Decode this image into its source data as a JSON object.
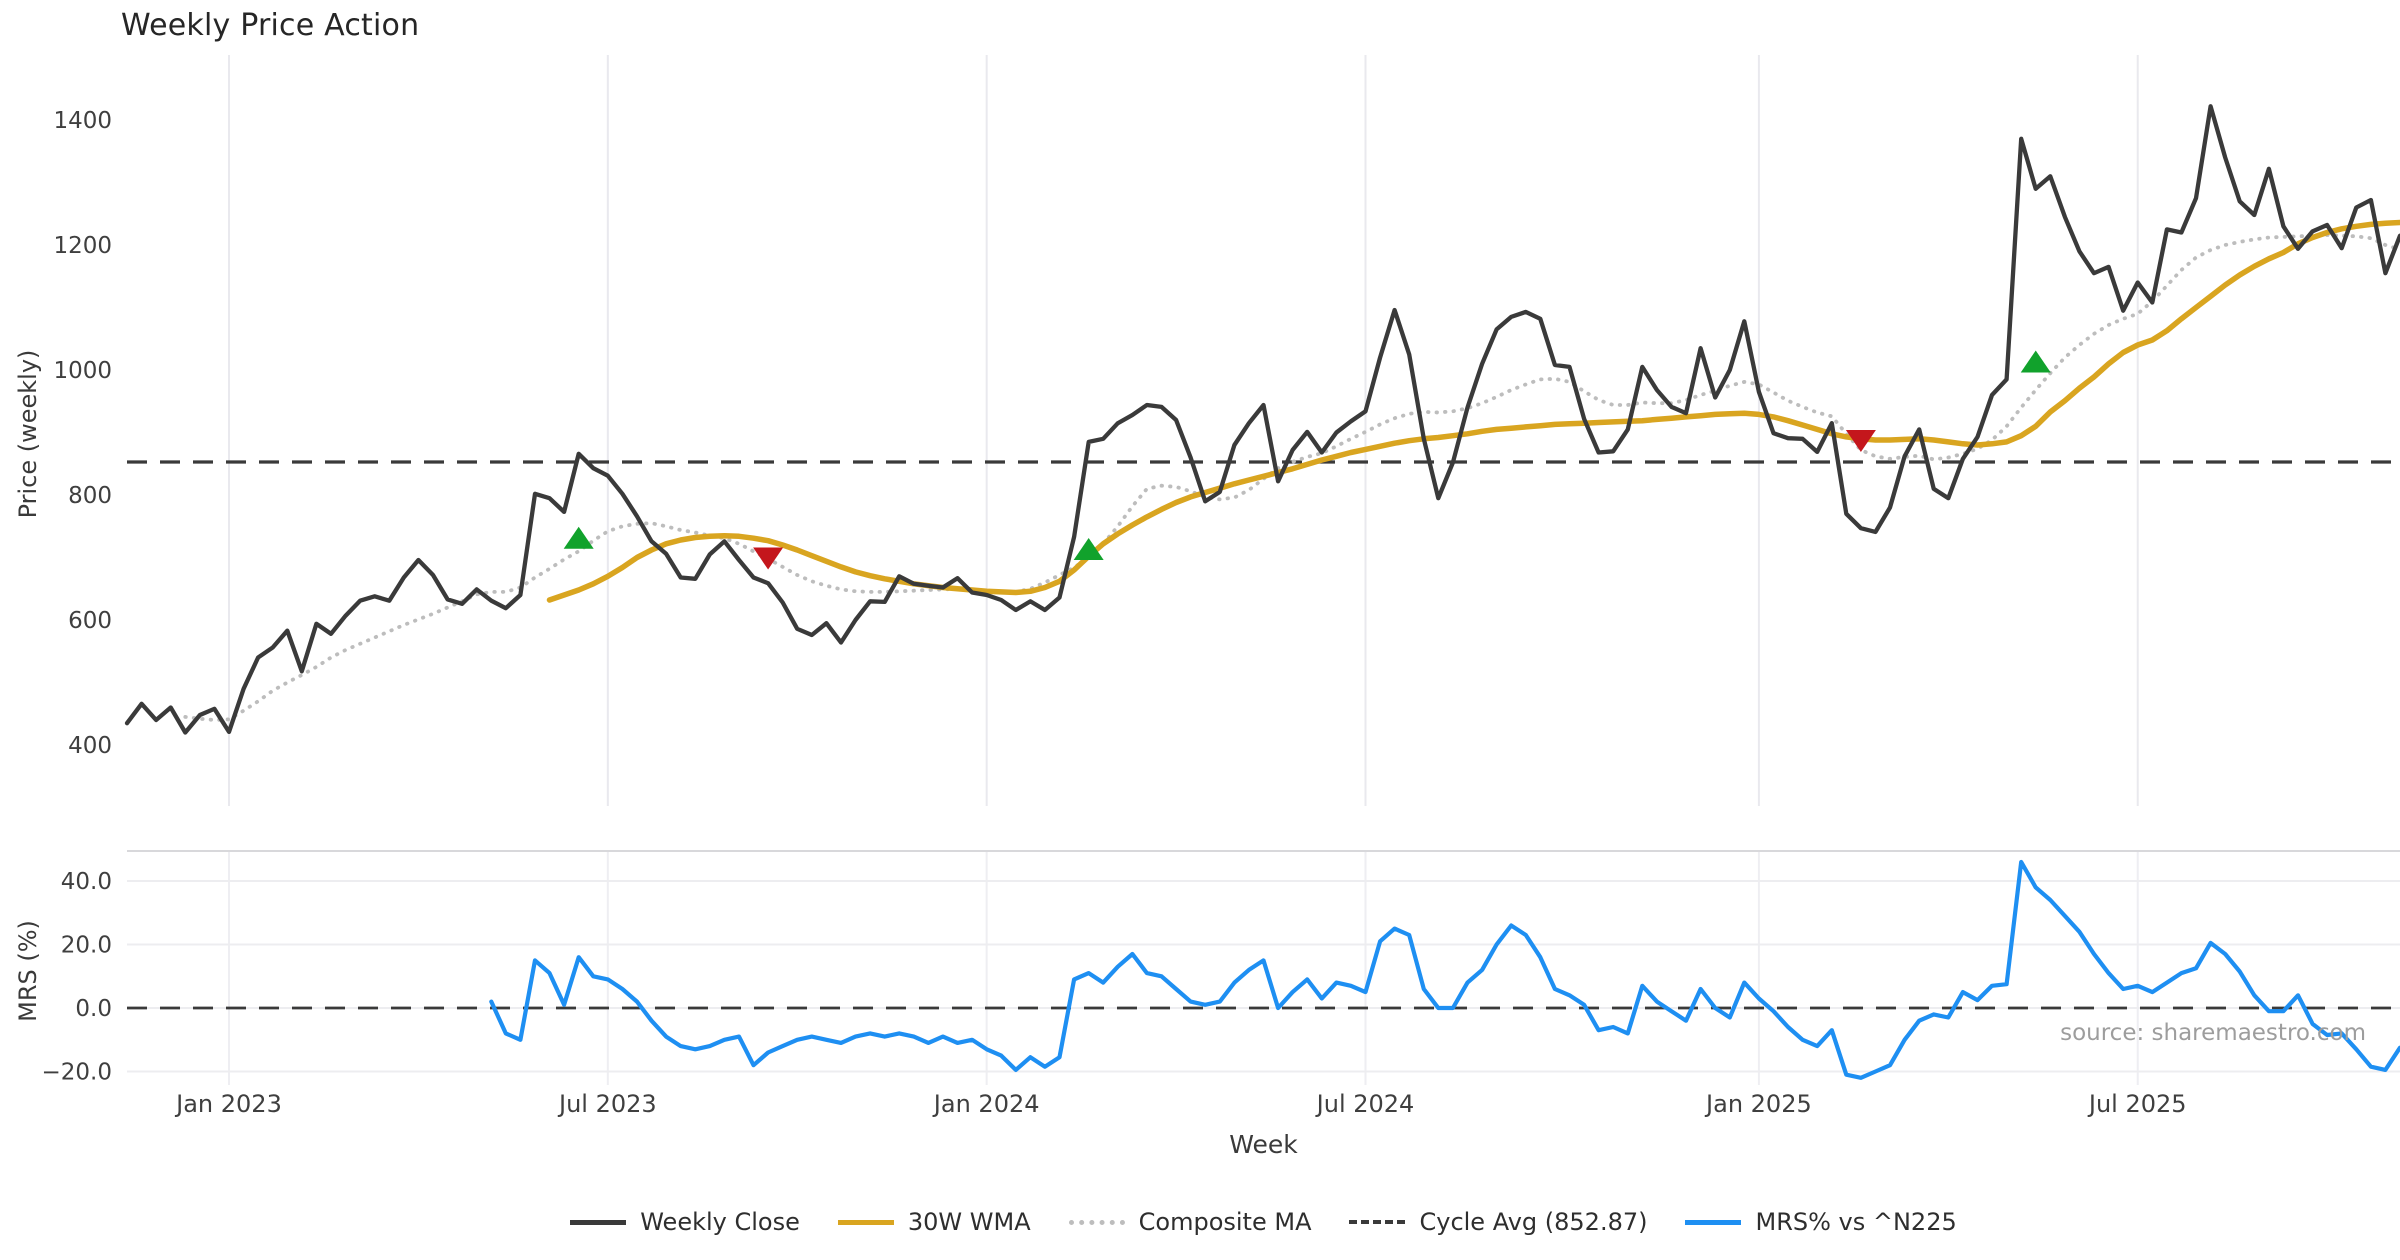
{
  "title": "Weekly Price Action",
  "source": "source: sharemaestro.com",
  "x_axis": {
    "label": "Week",
    "ticks": [
      {
        "label": "Jan 2023",
        "week": 7
      },
      {
        "label": "Jul 2023",
        "week": 33
      },
      {
        "label": "Jan 2024",
        "week": 59
      },
      {
        "label": "Jul 2024",
        "week": 85
      },
      {
        "label": "Jan 2025",
        "week": 112
      },
      {
        "label": "Jul 2025",
        "week": 138
      }
    ]
  },
  "price_panel": {
    "ylabel": "Price (weekly)",
    "ytick_labels": [
      "1400",
      "1200",
      "1000",
      "800",
      "600",
      "400"
    ],
    "yticks": [
      1400,
      1200,
      1000,
      800,
      600,
      400
    ]
  },
  "mrs_panel": {
    "ylabel": "MRS (%)",
    "ytick_labels": [
      "40.0",
      "20.0",
      "0.0",
      "−20.0"
    ],
    "yticks": [
      40,
      20,
      0,
      -20
    ]
  },
  "legend": {
    "items": [
      {
        "label": "Weekly Close",
        "color": "#3a3a3a",
        "style": "solid"
      },
      {
        "label": "30W WMA",
        "color": "#d9a520",
        "style": "solid"
      },
      {
        "label": "Composite MA",
        "color": "#bdbdbd",
        "style": "dotted"
      },
      {
        "label": "Cycle Avg (852.87)",
        "color": "#3a3a3a",
        "style": "dashed"
      },
      {
        "label": "MRS% vs ^N225",
        "color": "#1e8ff2",
        "style": "solid"
      }
    ]
  },
  "colors": {
    "weekly_close": "#3a3a3a",
    "wma": "#d9a520",
    "composite": "#bdbdbd",
    "cycle": "#3a3a3a",
    "mrs": "#1e8ff2",
    "buy": "#11a22c",
    "sell": "#c4161c",
    "grid": "#e9e9ee",
    "spine": "#d8d8db",
    "tick_text": "#3f3f3f"
  },
  "chart_data": [
    {
      "type": "line",
      "panel": "price",
      "title": "Weekly Price Action",
      "xlabel": "Week",
      "ylabel": "Price (weekly)",
      "ylim": [
        300,
        1505
      ],
      "x_start_week": "2022-11-14",
      "x_step": "1 week",
      "n_weeks": 157,
      "grid": "vertical-only",
      "cycle_avg": 852.87,
      "series": [
        {
          "name": "Weekly Close",
          "color": "#3a3a3a",
          "style": "solid",
          "start_index": 0,
          "values": [
            435,
            466,
            440,
            460,
            420,
            448,
            458,
            421,
            490,
            540,
            556,
            583,
            518,
            594,
            578,
            607,
            631,
            638,
            631,
            668,
            696,
            672,
            633,
            626,
            649,
            631,
            619,
            640,
            802,
            795,
            773,
            866,
            843,
            831,
            802,
            766,
            726,
            706,
            668,
            666,
            705,
            726,
            696,
            668,
            659,
            628,
            586,
            576,
            595,
            564,
            600,
            630,
            629,
            670,
            658,
            655,
            652,
            667,
            644,
            640,
            632,
            616,
            630,
            616,
            636,
            733,
            885,
            890,
            915,
            928,
            944,
            941,
            920,
            860,
            790,
            805,
            880,
            915,
            944,
            822,
            872,
            901,
            868,
            900,
            918,
            934,
            1020,
            1096,
            1025,
            890,
            795,
            852,
            940,
            1010,
            1065,
            1085,
            1093,
            1082,
            1008,
            1005,
            922,
            868,
            870,
            905,
            1005,
            968,
            941,
            931,
            1035,
            956,
            1000,
            1078,
            965,
            899,
            891,
            890,
            869,
            915,
            770,
            747,
            741,
            780,
            862,
            905,
            810,
            795,
            858,
            893,
            960,
            985,
            1370,
            1290,
            1310,
            1245,
            1190,
            1155,
            1165,
            1095,
            1140,
            1108,
            1225,
            1220,
            1275,
            1422,
            1340,
            1270,
            1248,
            1322,
            1230,
            1194,
            1222,
            1232,
            1195,
            1260,
            1272,
            1155,
            1215
          ]
        },
        {
          "name": "30W WMA",
          "color": "#d9a520",
          "style": "solid",
          "start_index": 29,
          "values": [
            632,
            640,
            648,
            658,
            670,
            684,
            700,
            712,
            722,
            728,
            732,
            734,
            735,
            734,
            731,
            727,
            720,
            712,
            703,
            694,
            685,
            677,
            671,
            666,
            662,
            658,
            655,
            652,
            650,
            648,
            646,
            645,
            644,
            646,
            652,
            662,
            680,
            702,
            722,
            738,
            752,
            765,
            777,
            788,
            797,
            804,
            811,
            818,
            824,
            830,
            836,
            842,
            849,
            856,
            862,
            868,
            873,
            878,
            883,
            887,
            890,
            892,
            895,
            898,
            902,
            905,
            907,
            909,
            911,
            913,
            914,
            915,
            916,
            917,
            918,
            919,
            921,
            923,
            925,
            927,
            929,
            930,
            931,
            929,
            925,
            919,
            912,
            905,
            898,
            893,
            890,
            888,
            888,
            889,
            890,
            888,
            885,
            882,
            880,
            882,
            885,
            895,
            910,
            933,
            951,
            971,
            989,
            1010,
            1028,
            1040,
            1048,
            1063,
            1082,
            1100,
            1118,
            1136,
            1152,
            1166,
            1178,
            1188,
            1202,
            1212,
            1220,
            1226,
            1230,
            1233,
            1235,
            1236
          ]
        },
        {
          "name": "Composite MA",
          "color": "#bdbdbd",
          "style": "dotted",
          "start_index": 4,
          "values": [
            445,
            442,
            440,
            441,
            455,
            470,
            487,
            500,
            512,
            525,
            540,
            552,
            562,
            572,
            582,
            592,
            601,
            610,
            620,
            630,
            641,
            645,
            645,
            652,
            668,
            682,
            697,
            710,
            727,
            742,
            750,
            754,
            755,
            750,
            744,
            740,
            735,
            731,
            722,
            710,
            698,
            685,
            672,
            662,
            655,
            649,
            646,
            645,
            645,
            646,
            647,
            648,
            649,
            650,
            648,
            645,
            644,
            645,
            650,
            660,
            672,
            684,
            700,
            722,
            750,
            782,
            810,
            815,
            813,
            806,
            797,
            793,
            796,
            808,
            826,
            843,
            853,
            861,
            867,
            878,
            890,
            901,
            913,
            923,
            930,
            933,
            932,
            934,
            939,
            947,
            957,
            968,
            977,
            985,
            986,
            981,
            966,
            952,
            944,
            944,
            948,
            947,
            947,
            952,
            960,
            967,
            975,
            981,
            977,
            964,
            951,
            941,
            932,
            926,
            898,
            872,
            862,
            858,
            861,
            863,
            857,
            860,
            866,
            874,
            888,
            910,
            940,
            968,
            995,
            1020,
            1040,
            1058,
            1072,
            1082,
            1090,
            1110,
            1135,
            1160,
            1180,
            1192,
            1200,
            1205,
            1209,
            1212,
            1213,
            1214,
            1215,
            1216,
            1215,
            1214,
            1211,
            1200,
            1193
          ]
        },
        {
          "name": "Cycle Avg",
          "color": "#3a3a3a",
          "style": "dashed",
          "constant": 852.87
        }
      ],
      "signals": {
        "buy_color": "#11a22c",
        "sell_color": "#c4161c",
        "buys": [
          {
            "index": 31,
            "price": 730
          },
          {
            "index": 66,
            "price": 712
          },
          {
            "index": 131,
            "price": 1012
          }
        ],
        "sells": [
          {
            "index": 44,
            "price": 700
          },
          {
            "index": 119,
            "price": 888
          }
        ]
      }
    },
    {
      "type": "line",
      "panel": "mrs",
      "ylabel": "MRS (%)",
      "ylim": [
        -24.5,
        49.5
      ],
      "grid": "both",
      "zero_dashed": true,
      "series": [
        {
          "name": "MRS% vs ^N225",
          "color": "#1e8ff2",
          "style": "solid",
          "start_index": 25,
          "values": [
            2,
            -8,
            -10,
            15,
            11,
            1,
            16,
            10,
            9,
            6,
            2,
            -4,
            -9,
            -12,
            -13,
            -12,
            -10,
            -9,
            -18,
            -14,
            -12,
            -10,
            -9,
            -10,
            -11,
            -9,
            -8,
            -9,
            -8,
            -9,
            -11,
            -9,
            -11,
            -10,
            -13,
            -15,
            -19.5,
            -15.5,
            -18.5,
            -15.5,
            9,
            11,
            8,
            13,
            17,
            11,
            10,
            6,
            2,
            1,
            2,
            8,
            12,
            15,
            0,
            5,
            9,
            3,
            8,
            7,
            5,
            21,
            25,
            23,
            6,
            0,
            0,
            8,
            12,
            20,
            26,
            23,
            16,
            6,
            4,
            1,
            -7,
            -6,
            -8,
            7,
            2,
            -1,
            -4,
            6,
            0,
            -3,
            8,
            3,
            -1,
            -6,
            -10,
            -12,
            -7,
            -21,
            -22,
            -20,
            -18,
            -10,
            -4,
            -2,
            -3,
            5,
            2.5,
            7,
            7.5,
            46,
            38,
            34,
            29,
            24,
            17,
            11,
            6,
            7,
            5,
            8,
            11,
            12.5,
            20.5,
            17,
            11.5,
            4,
            -1,
            -1,
            4,
            -5,
            -8.5,
            -8,
            -13,
            -18.5,
            -19.5,
            -12.5
          ]
        }
      ]
    }
  ]
}
